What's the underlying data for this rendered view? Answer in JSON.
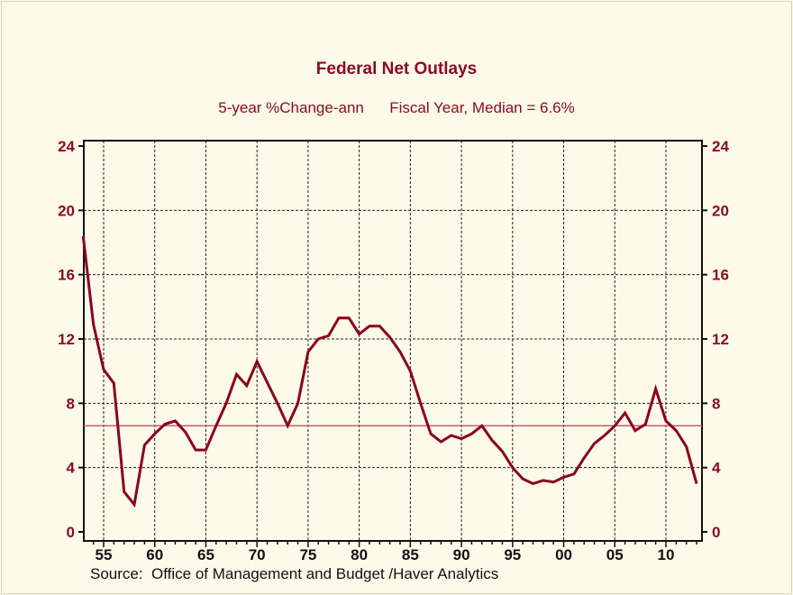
{
  "chart_data": {
    "type": "line",
    "title": "Federal Net Outlays",
    "subtitle_left": "5-year %Change-ann",
    "subtitle_right": "Fiscal Year, Median = 6.6%",
    "source": "Source:  Office of Management and Budget /Haver Analytics",
    "ylim": [
      0,
      24
    ],
    "yticks": [
      "0",
      "4",
      "8",
      "12",
      "16",
      "20",
      "24"
    ],
    "xticks": [
      "55",
      "60",
      "65",
      "70",
      "75",
      "80",
      "85",
      "90",
      "95",
      "00",
      "05",
      "10"
    ],
    "xtick_years": [
      1955,
      1960,
      1965,
      1970,
      1975,
      1980,
      1985,
      1990,
      1995,
      2000,
      2005,
      2010
    ],
    "xlim": [
      1953,
      2014
    ],
    "grid": true,
    "median": 6.6,
    "colors": {
      "series": "#8b0020",
      "median": "#c06070",
      "text": "#8b0a24",
      "background": "#fefae9"
    },
    "x": [
      1953,
      1954,
      1955,
      1956,
      1957,
      1958,
      1959,
      1960,
      1961,
      1962,
      1963,
      1964,
      1965,
      1966,
      1967,
      1968,
      1969,
      1970,
      1971,
      1972,
      1973,
      1974,
      1975,
      1976,
      1977,
      1978,
      1979,
      1980,
      1981,
      1982,
      1983,
      1984,
      1985,
      1986,
      1987,
      1988,
      1989,
      1990,
      1991,
      1992,
      1993,
      1994,
      1995,
      1996,
      1997,
      1998,
      1999,
      2000,
      2001,
      2002,
      2003,
      2004,
      2005,
      2006,
      2007,
      2008,
      2009,
      2010,
      2011,
      2012,
      2013
    ],
    "values": [
      18.4,
      12.9,
      10.1,
      9.25,
      2.5,
      1.7,
      5.4,
      6.1,
      6.7,
      6.9,
      6.2,
      5.1,
      5.1,
      6.6,
      8.0,
      9.8,
      9.1,
      10.6,
      9.3,
      8.0,
      6.6,
      8.0,
      11.2,
      12.0,
      12.2,
      13.3,
      13.3,
      12.3,
      12.8,
      12.8,
      12.1,
      11.2,
      10.0,
      8.0,
      6.1,
      5.6,
      6.0,
      5.8,
      6.1,
      6.6,
      5.7,
      5.0,
      4.0,
      3.3,
      3.0,
      3.2,
      3.1,
      3.4,
      3.6,
      4.6,
      5.5,
      6.0,
      6.6,
      7.4,
      6.3,
      6.7,
      8.9,
      6.9,
      6.3,
      5.3,
      3.0
    ]
  }
}
